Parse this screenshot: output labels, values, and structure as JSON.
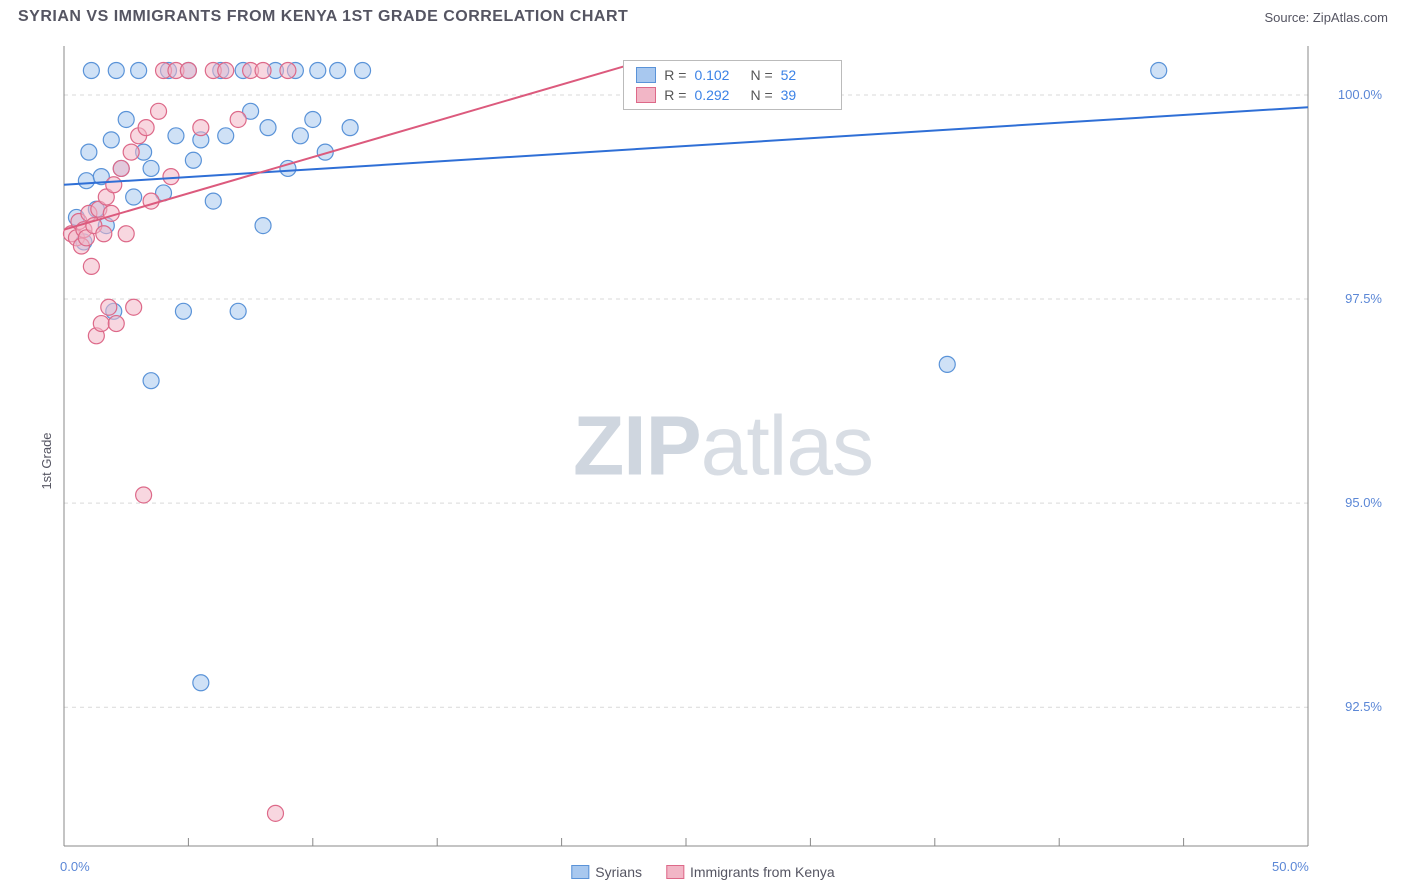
{
  "header": {
    "title": "SYRIAN VS IMMIGRANTS FROM KENYA 1ST GRADE CORRELATION CHART",
    "source": "Source: ZipAtlas.com"
  },
  "watermark": {
    "zip": "ZIP",
    "atlas": "atlas"
  },
  "chart": {
    "type": "scatter",
    "y_axis_label": "1st Grade",
    "background_color": "#ffffff",
    "grid_color": "#d9d9d9",
    "axis_color": "#888888",
    "tick_label_color": "#5b87d6",
    "xlim": [
      0.0,
      50.0
    ],
    "ylim": [
      90.8,
      100.6
    ],
    "x_ticks": [
      0.0,
      50.0
    ],
    "x_tick_labels": [
      "0.0%",
      "50.0%"
    ],
    "y_ticks": [
      92.5,
      95.0,
      97.5,
      100.0
    ],
    "y_tick_labels": [
      "92.5%",
      "95.0%",
      "97.5%",
      "100.0%"
    ],
    "x_minor_ticks": [
      5,
      10,
      15,
      20,
      25,
      30,
      35,
      40,
      45
    ],
    "marker_radius": 8,
    "marker_opacity": 0.55,
    "series": [
      {
        "name": "Syrians",
        "color_fill": "#a8c8ef",
        "color_stroke": "#5a93d8",
        "R": "0.102",
        "N": "52",
        "trend": {
          "x1": 0.0,
          "y1": 98.9,
          "x2": 50.0,
          "y2": 99.85,
          "color": "#2f6fd6",
          "width": 2
        },
        "points": [
          [
            0.5,
            98.5
          ],
          [
            0.8,
            98.2
          ],
          [
            0.9,
            98.95
          ],
          [
            1.0,
            99.3
          ],
          [
            1.1,
            100.3
          ],
          [
            1.3,
            98.6
          ],
          [
            1.5,
            99.0
          ],
          [
            1.7,
            98.4
          ],
          [
            1.9,
            99.45
          ],
          [
            2.0,
            97.35
          ],
          [
            2.1,
            100.3
          ],
          [
            2.3,
            99.1
          ],
          [
            2.5,
            99.7
          ],
          [
            2.8,
            98.75
          ],
          [
            3.0,
            100.3
          ],
          [
            3.2,
            99.3
          ],
          [
            3.5,
            99.1
          ],
          [
            3.5,
            96.5
          ],
          [
            4.0,
            98.8
          ],
          [
            4.2,
            100.3
          ],
          [
            4.5,
            99.5
          ],
          [
            4.8,
            97.35
          ],
          [
            5.0,
            100.3
          ],
          [
            5.2,
            99.2
          ],
          [
            5.5,
            99.45
          ],
          [
            5.5,
            92.8
          ],
          [
            6.0,
            98.7
          ],
          [
            6.3,
            100.3
          ],
          [
            6.5,
            99.5
          ],
          [
            7.0,
            97.35
          ],
          [
            7.2,
            100.3
          ],
          [
            7.5,
            99.8
          ],
          [
            8.0,
            98.4
          ],
          [
            8.2,
            99.6
          ],
          [
            8.5,
            100.3
          ],
          [
            9.0,
            99.1
          ],
          [
            9.3,
            100.3
          ],
          [
            9.5,
            99.5
          ],
          [
            10.0,
            99.7
          ],
          [
            10.2,
            100.3
          ],
          [
            10.5,
            99.3
          ],
          [
            11.0,
            100.3
          ],
          [
            11.5,
            99.6
          ],
          [
            12.0,
            100.3
          ],
          [
            35.5,
            96.7
          ],
          [
            44.0,
            100.3
          ]
        ]
      },
      {
        "name": "Immigrants from Kenya",
        "color_fill": "#f2b6c6",
        "color_stroke": "#dd6989",
        "R": "0.292",
        "N": "39",
        "trend": {
          "x1": 0.0,
          "y1": 98.35,
          "x2": 22.5,
          "y2": 100.35,
          "color": "#dc5a7d",
          "width": 2
        },
        "points": [
          [
            0.3,
            98.3
          ],
          [
            0.5,
            98.25
          ],
          [
            0.6,
            98.45
          ],
          [
            0.7,
            98.15
          ],
          [
            0.8,
            98.35
          ],
          [
            0.9,
            98.25
          ],
          [
            1.0,
            98.55
          ],
          [
            1.1,
            97.9
          ],
          [
            1.2,
            98.4
          ],
          [
            1.3,
            97.05
          ],
          [
            1.4,
            98.6
          ],
          [
            1.5,
            97.2
          ],
          [
            1.6,
            98.3
          ],
          [
            1.7,
            98.75
          ],
          [
            1.8,
            97.4
          ],
          [
            1.9,
            98.55
          ],
          [
            2.0,
            98.9
          ],
          [
            2.1,
            97.2
          ],
          [
            2.3,
            99.1
          ],
          [
            2.5,
            98.3
          ],
          [
            2.7,
            99.3
          ],
          [
            2.8,
            97.4
          ],
          [
            3.0,
            99.5
          ],
          [
            3.2,
            95.1
          ],
          [
            3.3,
            99.6
          ],
          [
            3.5,
            98.7
          ],
          [
            3.8,
            99.8
          ],
          [
            4.0,
            100.3
          ],
          [
            4.3,
            99.0
          ],
          [
            4.5,
            100.3
          ],
          [
            5.0,
            100.3
          ],
          [
            5.5,
            99.6
          ],
          [
            6.0,
            100.3
          ],
          [
            6.5,
            100.3
          ],
          [
            7.0,
            99.7
          ],
          [
            7.5,
            100.3
          ],
          [
            8.0,
            100.3
          ],
          [
            8.5,
            91.2
          ],
          [
            9.0,
            100.3
          ]
        ]
      }
    ],
    "info_box": {
      "left_pct": 42.5,
      "top_pct": 2.5
    },
    "legend": {
      "items": [
        {
          "label": "Syrians",
          "fill": "#a8c8ef",
          "stroke": "#5a93d8"
        },
        {
          "label": "Immigrants from Kenya",
          "fill": "#f2b6c6",
          "stroke": "#dd6989"
        }
      ]
    }
  }
}
